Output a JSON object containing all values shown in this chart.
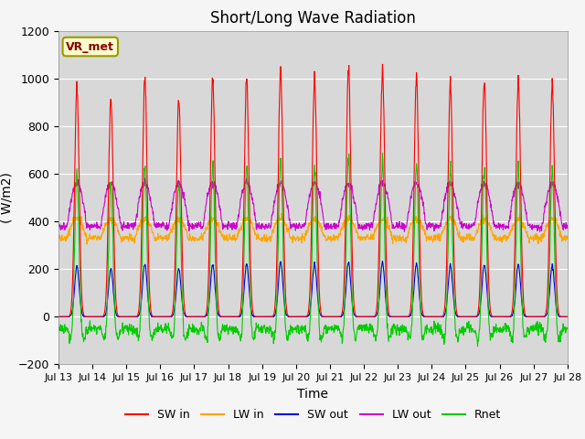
{
  "title": "Short/Long Wave Radiation",
  "ylabel": "( W/m2)",
  "xlabel": "Time",
  "ylim": [
    -200,
    1200
  ],
  "yticks": [
    -200,
    0,
    200,
    400,
    600,
    800,
    1000,
    1200
  ],
  "label_box": "VR_met",
  "series_colors": {
    "SW in": "#ff0000",
    "LW in": "#ffa500",
    "SW out": "#0000dd",
    "LW out": "#cc00cc",
    "Rnet": "#00cc00"
  },
  "x_tick_labels": [
    "Jul 13",
    "Jul 14",
    "Jul 15",
    "Jul 16",
    "Jul 17",
    "Jul 18",
    "Jul 19",
    "Jul 20",
    "Jul 21",
    "Jul 22",
    "Jul 23",
    "Jul 24",
    "Jul 25",
    "Jul 26",
    "Jul 27",
    "Jul 28"
  ],
  "n_days": 15,
  "background_color": "#d8d8d8",
  "fig_color": "#f5f5f5",
  "title_fontsize": 12,
  "axis_fontsize": 10,
  "tick_fontsize": 9,
  "sw_peaks": [
    960,
    920,
    1010,
    910,
    1000,
    1000,
    1040,
    1000,
    1030,
    1025,
    1010,
    975,
    1000,
    1000,
    975
  ]
}
